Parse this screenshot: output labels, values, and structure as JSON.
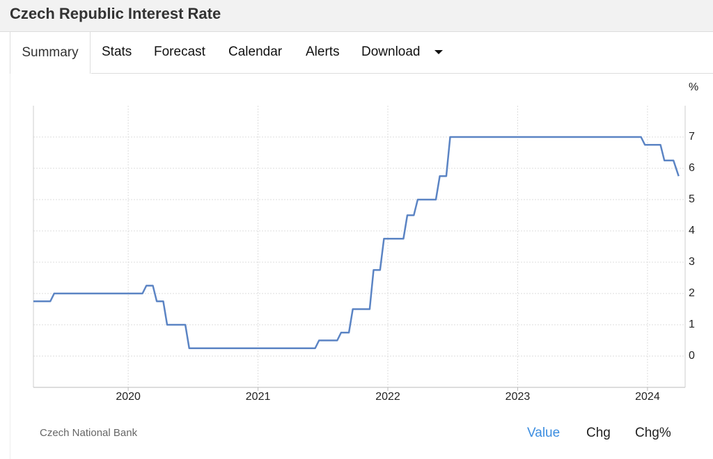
{
  "header": {
    "title": "Czech Republic Interest Rate"
  },
  "tabs": [
    "Summary",
    "Stats",
    "Forecast",
    "Calendar",
    "Alerts",
    "Download"
  ],
  "chart_data": {
    "type": "line",
    "y_unit": "%",
    "grid": true,
    "x": [
      2019.27,
      2019.4,
      2019.43,
      2020.11,
      2020.14,
      2020.19,
      2020.22,
      2020.27,
      2020.3,
      2020.44,
      2020.47,
      2021.44,
      2021.47,
      2021.61,
      2021.64,
      2021.7,
      2021.73,
      2021.86,
      2021.89,
      2021.94,
      2021.97,
      2022.12,
      2022.15,
      2022.2,
      2022.23,
      2022.37,
      2022.4,
      2022.45,
      2022.48,
      2023.95,
      2023.98,
      2024.1,
      2024.13,
      2024.2,
      2024.24
    ],
    "series": [
      {
        "color": "#5b84c4",
        "values": [
          1.75,
          1.75,
          2,
          2,
          2.25,
          2.25,
          1.75,
          1.75,
          1,
          1,
          0.25,
          0.25,
          0.5,
          0.5,
          0.75,
          0.75,
          1.5,
          1.5,
          2.75,
          2.75,
          3.75,
          3.75,
          4.5,
          4.5,
          5,
          5,
          5.75,
          5.75,
          7,
          7,
          6.75,
          6.75,
          6.25,
          6.25,
          5.75
        ]
      }
    ],
    "xlim": [
      2019.27,
      2024.29
    ],
    "xticks": [
      2020,
      2021,
      2022,
      2023,
      2024
    ],
    "ylim": [
      -1,
      8
    ],
    "yticks": [
      0,
      1,
      2,
      3,
      4,
      5,
      6,
      7
    ]
  },
  "source": "Czech National Bank",
  "view_options": [
    "Value",
    "Chg",
    "Chg%"
  ]
}
